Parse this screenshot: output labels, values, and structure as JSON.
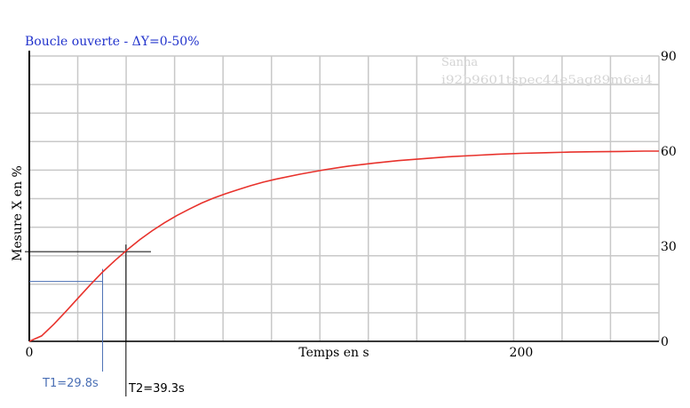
{
  "chart_data": {
    "type": "line",
    "title": "Boucle ouverte - ΔY=0-50%",
    "xlabel": "Temps en s",
    "ylabel": "Mesure X en %",
    "xlim": [
      0,
      256
    ],
    "ylim": [
      0,
      90
    ],
    "x_ticks": [
      {
        "value": 0,
        "label": "0"
      },
      {
        "value": 200,
        "label": "200"
      }
    ],
    "y_ticks": [
      {
        "value": 0,
        "label": "0"
      },
      {
        "value": 30,
        "label": "30"
      },
      {
        "value": 60,
        "label": "60"
      },
      {
        "value": 90,
        "label": "90"
      }
    ],
    "grid": true,
    "series": [
      {
        "color": "#e8322c",
        "x": [
          0,
          5,
          10,
          15,
          20,
          25,
          30,
          35,
          40,
          45,
          50,
          55,
          60,
          65,
          70,
          75,
          80,
          85,
          90,
          95,
          100,
          110,
          120,
          130,
          140,
          150,
          160,
          170,
          180,
          190,
          200,
          210,
          220,
          230,
          240,
          250,
          256
        ],
        "y": [
          0,
          1.7,
          5.4,
          9.5,
          13.8,
          18.0,
          22.0,
          25.6,
          29.0,
          32.1,
          34.9,
          37.4,
          39.7,
          41.7,
          43.6,
          45.2,
          46.6,
          47.9,
          49.1,
          50.2,
          51.1,
          52.7,
          54.1,
          55.3,
          56.2,
          57.0,
          57.6,
          58.2,
          58.6,
          59.0,
          59.3,
          59.5,
          59.7,
          59.8,
          59.9,
          60.0,
          60.0
        ]
      }
    ],
    "annotations": {
      "t1": {
        "label": "T1=29.8s",
        "x": 29.8,
        "y": 18.9,
        "color": "#4a6fb5"
      },
      "t2": {
        "label": "T2=39.3s",
        "x": 39.3,
        "y": 28.3,
        "color": "#000000"
      }
    }
  },
  "watermark": {
    "line1": "Sanna",
    "line2": "i92b9601tspec44e5ag89m6ei4"
  },
  "colors": {
    "grid": "#c8c8c8",
    "axis": "#000000",
    "title": "#2233cc"
  }
}
